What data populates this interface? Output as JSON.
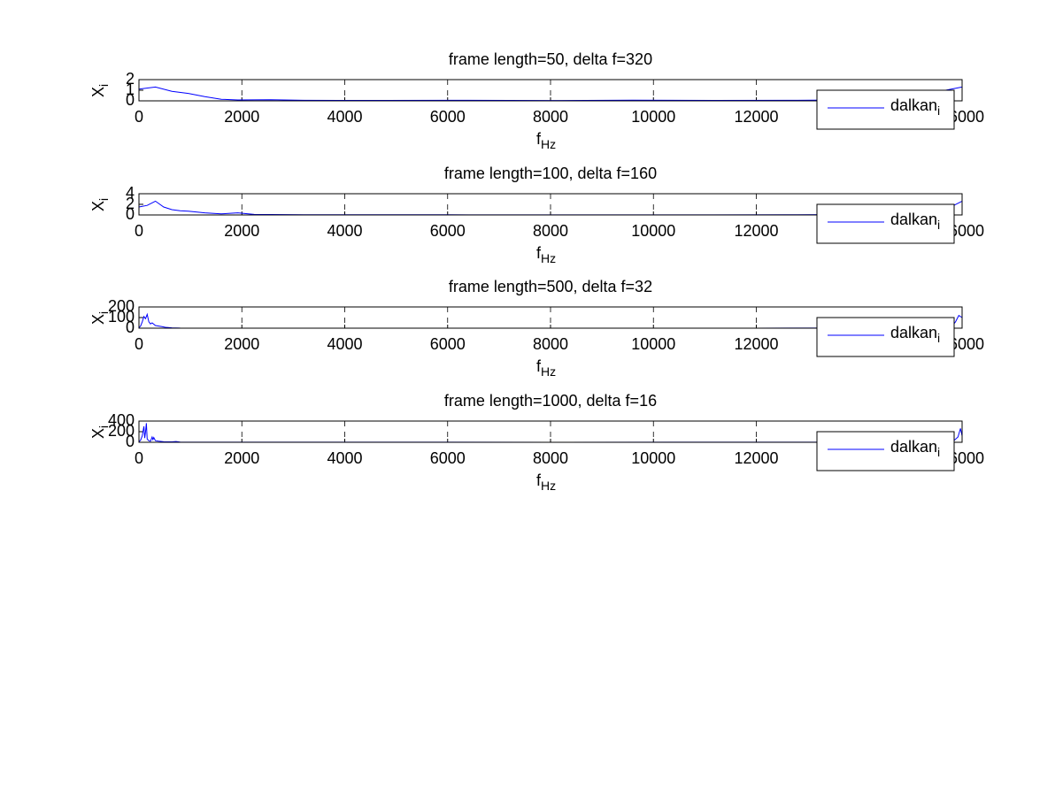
{
  "chart_data": [
    {
      "type": "line",
      "title": "frame length=50, delta f=320",
      "xlabel": "f",
      "xlabel_sub": "Hz",
      "ylabel": "X",
      "ylabel_sub": "i",
      "x": [
        0,
        320,
        640,
        960,
        1280,
        1600,
        1920,
        2560,
        3200,
        4800,
        6400,
        8000,
        9600,
        11200,
        12800,
        14400,
        15040,
        15360,
        15680,
        16000
      ],
      "series": [
        {
          "name": "dalkan",
          "name_sub": "i",
          "color": "#0000ff",
          "values": [
            1.1,
            1.3,
            0.9,
            0.7,
            0.4,
            0.15,
            0.08,
            0.1,
            0.05,
            0.04,
            0.05,
            0.03,
            0.06,
            0.04,
            0.05,
            0.1,
            0.3,
            0.7,
            1.0,
            1.3
          ]
        }
      ],
      "xlim": [
        0,
        16000
      ],
      "xticks": [
        0,
        2000,
        4000,
        6000,
        8000,
        10000,
        12000,
        16000
      ],
      "ylim": [
        0,
        2
      ],
      "yticks": [
        0,
        1,
        2
      ],
      "grid": true,
      "legend": "bottom-right"
    },
    {
      "type": "line",
      "title": "frame length=100, delta f=160",
      "xlabel": "f",
      "xlabel_sub": "Hz",
      "ylabel": "X",
      "ylabel_sub": "i",
      "x": [
        0,
        160,
        320,
        480,
        640,
        800,
        960,
        1280,
        1600,
        1920,
        2240,
        3200,
        4800,
        6400,
        8000,
        9600,
        11200,
        12800,
        14400,
        15200,
        15520,
        15840,
        16000
      ],
      "series": [
        {
          "name": "dalkan",
          "name_sub": "i",
          "color": "#0000ff",
          "values": [
            1.5,
            1.8,
            2.6,
            1.5,
            1.0,
            0.8,
            0.7,
            0.4,
            0.2,
            0.4,
            0.1,
            0.05,
            0.05,
            0.03,
            0.03,
            0.03,
            0.03,
            0.05,
            0.1,
            0.5,
            1.0,
            1.8,
            2.6
          ]
        }
      ],
      "xlim": [
        0,
        16000
      ],
      "xticks": [
        0,
        2000,
        4000,
        6000,
        8000,
        10000,
        12000,
        16000
      ],
      "ylim": [
        0,
        4
      ],
      "yticks": [
        0,
        2,
        4
      ],
      "grid": true,
      "legend": "bottom-right"
    },
    {
      "type": "line",
      "title": "frame length=500, delta f=32",
      "xlabel": "f",
      "xlabel_sub": "Hz",
      "ylabel": "X",
      "ylabel_sub": "i",
      "x": [
        0,
        32,
        64,
        96,
        128,
        160,
        192,
        224,
        256,
        320,
        384,
        448,
        512,
        640,
        800,
        1600,
        4000,
        8000,
        12000,
        15360,
        15680,
        15840,
        15872,
        15936,
        16000
      ],
      "series": [
        {
          "name": "dalkan",
          "name_sub": "i",
          "color": "#0000ff",
          "values": [
            5,
            20,
            60,
            110,
            90,
            130,
            60,
            40,
            50,
            25,
            20,
            15,
            8,
            3,
            1,
            0.5,
            0.3,
            0.3,
            0.5,
            2,
            10,
            40,
            60,
            120,
            100
          ]
        }
      ],
      "xlim": [
        0,
        16000
      ],
      "xticks": [
        0,
        2000,
        4000,
        6000,
        8000,
        10000,
        12000,
        16000
      ],
      "ylim": [
        0,
        200
      ],
      "yticks": [
        0,
        100,
        200
      ],
      "grid": true,
      "legend": "bottom-right"
    },
    {
      "type": "line",
      "title": "frame length=1000, delta f=16",
      "xlabel": "f",
      "xlabel_sub": "Hz",
      "ylabel": "X",
      "ylabel_sub": "i",
      "x": [
        0,
        32,
        64,
        96,
        112,
        128,
        144,
        160,
        192,
        224,
        256,
        272,
        288,
        320,
        384,
        480,
        640,
        720,
        800,
        1600,
        8000,
        15200,
        15680,
        15840,
        15920,
        15968,
        16000
      ],
      "series": [
        {
          "name": "dalkan",
          "name_sub": "i",
          "color": "#0000ff",
          "values": [
            10,
            40,
            120,
            300,
            80,
            200,
            360,
            60,
            30,
            20,
            100,
            50,
            90,
            30,
            20,
            10,
            8,
            15,
            5,
            2,
            1,
            2,
            5,
            30,
            100,
            260,
            120
          ]
        }
      ],
      "xlim": [
        0,
        16000
      ],
      "xticks": [
        0,
        2000,
        4000,
        6000,
        8000,
        10000,
        12000,
        16000
      ],
      "ylim": [
        0,
        400
      ],
      "yticks": [
        0,
        200,
        400
      ],
      "grid": true,
      "legend": "bottom-right"
    }
  ]
}
